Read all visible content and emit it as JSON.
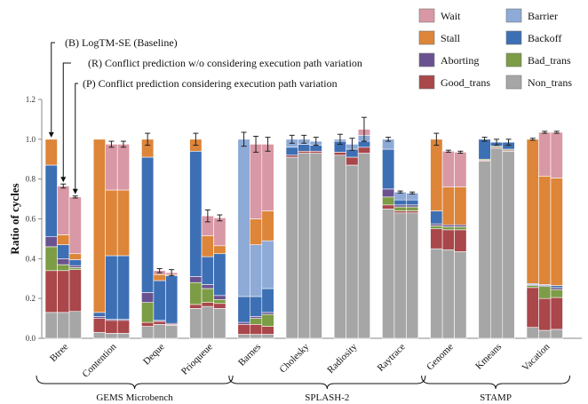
{
  "chart_data": {
    "type": "bar",
    "stacked": true,
    "ylabel": "Ratio of cycles",
    "ylim": [
      0,
      1.2
    ],
    "yticks": [
      "0.0",
      "0.2",
      "0.4",
      "0.6",
      "0.8",
      "1.0",
      "1.2"
    ],
    "grid": false,
    "legend_position": "top-right",
    "components": [
      "Non_trans",
      "Good_trans",
      "Bad_trans",
      "Aborting",
      "Backoff",
      "Barrier",
      "Stall",
      "Wait"
    ],
    "legend": [
      {
        "key": "Wait",
        "label": "Wait"
      },
      {
        "key": "Barrier",
        "label": "Barrier"
      },
      {
        "key": "Stall",
        "label": "Stall"
      },
      {
        "key": "Backoff",
        "label": "Backoff"
      },
      {
        "key": "Aborting",
        "label": "Aborting"
      },
      {
        "key": "Bad_trans",
        "label": "Bad_trans"
      },
      {
        "key": "Good_trans",
        "label": "Good_trans"
      },
      {
        "key": "Non_trans",
        "label": "Non_trans"
      }
    ],
    "colors": {
      "Non_trans": "#a6a6a6",
      "Good_trans": "#a9474a",
      "Bad_trans": "#7c9c46",
      "Aborting": "#6a5290",
      "Backoff": "#3d6fb4",
      "Barrier": "#8eaad7",
      "Stall": "#dd8539",
      "Wait": "#d998a5"
    },
    "annotations": [
      {
        "variant": "B",
        "text": "(B) LogTM-SE (Baseline)"
      },
      {
        "variant": "R",
        "text": "(R) Conflict prediction w/o considering execution path variation"
      },
      {
        "variant": "P",
        "text": "(P) Conflict prediction considering execution path variation"
      }
    ],
    "groups": [
      {
        "label": "GEMS Microbench",
        "benchmarks": [
          "Btree",
          "Contention",
          "Deque",
          "Prioqueue"
        ]
      },
      {
        "label": "SPLASH-2",
        "benchmarks": [
          "Barnes",
          "Cholesky",
          "Radiosity",
          "Raytrace"
        ]
      },
      {
        "label": "STAMP",
        "benchmarks": [
          "Genome",
          "Kmeans",
          "Vacation"
        ]
      }
    ],
    "benchmarks": [
      {
        "name": "Btree",
        "bars": [
          {
            "variant": "B",
            "total": 1.0,
            "err": 0.0,
            "values": {
              "Non_trans": 0.13,
              "Good_trans": 0.21,
              "Bad_trans": 0.12,
              "Aborting": 0.05,
              "Backoff": 0.36,
              "Barrier": 0.0,
              "Stall": 0.13,
              "Wait": 0.0
            }
          },
          {
            "variant": "R",
            "total": 0.765,
            "err": 0.01,
            "values": {
              "Non_trans": 0.13,
              "Good_trans": 0.21,
              "Bad_trans": 0.03,
              "Aborting": 0.03,
              "Backoff": 0.07,
              "Barrier": 0.0,
              "Stall": 0.05,
              "Wait": 0.245
            }
          },
          {
            "variant": "P",
            "total": 0.71,
            "err": 0.005,
            "values": {
              "Non_trans": 0.135,
              "Good_trans": 0.21,
              "Bad_trans": 0.01,
              "Aborting": 0.01,
              "Backoff": 0.03,
              "Barrier": 0.0,
              "Stall": 0.03,
              "Wait": 0.285
            }
          }
        ]
      },
      {
        "name": "Contention",
        "bars": [
          {
            "variant": "B",
            "total": 1.0,
            "err": 0.0,
            "values": {
              "Non_trans": 0.03,
              "Good_trans": 0.07,
              "Bad_trans": 0.0,
              "Aborting": 0.01,
              "Backoff": 0.02,
              "Barrier": 0.0,
              "Stall": 0.87,
              "Wait": 0.0
            }
          },
          {
            "variant": "R",
            "total": 0.975,
            "err": 0.015,
            "values": {
              "Non_trans": 0.025,
              "Good_trans": 0.065,
              "Bad_trans": 0.0,
              "Aborting": 0.005,
              "Backoff": 0.32,
              "Barrier": 0.0,
              "Stall": 0.33,
              "Wait": 0.23
            }
          },
          {
            "variant": "P",
            "total": 0.975,
            "err": 0.015,
            "values": {
              "Non_trans": 0.025,
              "Good_trans": 0.065,
              "Bad_trans": 0.0,
              "Aborting": 0.005,
              "Backoff": 0.32,
              "Barrier": 0.0,
              "Stall": 0.33,
              "Wait": 0.23
            }
          }
        ]
      },
      {
        "name": "Deque",
        "bars": [
          {
            "variant": "B",
            "total": 1.0,
            "err": 0.03,
            "values": {
              "Non_trans": 0.06,
              "Good_trans": 0.02,
              "Bad_trans": 0.1,
              "Aborting": 0.05,
              "Backoff": 0.68,
              "Barrier": 0.0,
              "Stall": 0.09,
              "Wait": 0.0
            }
          },
          {
            "variant": "R",
            "total": 0.34,
            "err": 0.01,
            "values": {
              "Non_trans": 0.07,
              "Good_trans": 0.015,
              "Bad_trans": 0.0,
              "Aborting": 0.005,
              "Backoff": 0.2,
              "Barrier": 0.0,
              "Stall": 0.03,
              "Wait": 0.02
            }
          },
          {
            "variant": "P",
            "total": 0.33,
            "err": 0.015,
            "values": {
              "Non_trans": 0.065,
              "Good_trans": 0.005,
              "Bad_trans": 0.0,
              "Aborting": 0.005,
              "Backoff": 0.24,
              "Barrier": 0.0,
              "Stall": 0.005,
              "Wait": 0.01
            }
          }
        ]
      },
      {
        "name": "Prioqueue",
        "bars": [
          {
            "variant": "B",
            "total": 1.0,
            "err": 0.03,
            "values": {
              "Non_trans": 0.15,
              "Good_trans": 0.02,
              "Bad_trans": 0.11,
              "Aborting": 0.03,
              "Backoff": 0.63,
              "Barrier": 0.0,
              "Stall": 0.06,
              "Wait": 0.0
            }
          },
          {
            "variant": "R",
            "total": 0.615,
            "err": 0.03,
            "values": {
              "Non_trans": 0.16,
              "Good_trans": 0.02,
              "Bad_trans": 0.07,
              "Aborting": 0.02,
              "Backoff": 0.14,
              "Barrier": 0.0,
              "Stall": 0.105,
              "Wait": 0.1
            }
          },
          {
            "variant": "P",
            "total": 0.605,
            "err": 0.015,
            "values": {
              "Non_trans": 0.15,
              "Good_trans": 0.025,
              "Bad_trans": 0.02,
              "Aborting": 0.02,
              "Backoff": 0.21,
              "Barrier": 0.0,
              "Stall": 0.04,
              "Wait": 0.14
            }
          }
        ]
      },
      {
        "name": "Barnes",
        "bars": [
          {
            "variant": "B",
            "total": 1.0,
            "err": 0.035,
            "values": {
              "Non_trans": 0.02,
              "Good_trans": 0.05,
              "Bad_trans": 0.0,
              "Aborting": 0.01,
              "Backoff": 0.13,
              "Barrier": 0.79,
              "Stall": 0.0,
              "Wait": 0.0
            }
          },
          {
            "variant": "R",
            "total": 0.975,
            "err": 0.04,
            "values": {
              "Non_trans": 0.02,
              "Good_trans": 0.05,
              "Bad_trans": 0.03,
              "Aborting": 0.01,
              "Backoff": 0.1,
              "Barrier": 0.26,
              "Stall": 0.13,
              "Wait": 0.375
            }
          },
          {
            "variant": "P",
            "total": 0.975,
            "err": 0.035,
            "values": {
              "Non_trans": 0.02,
              "Good_trans": 0.04,
              "Bad_trans": 0.06,
              "Aborting": 0.01,
              "Backoff": 0.12,
              "Barrier": 0.24,
              "Stall": 0.15,
              "Wait": 0.335
            }
          }
        ]
      },
      {
        "name": "Cholesky",
        "bars": [
          {
            "variant": "B",
            "total": 1.0,
            "err": 0.02,
            "values": {
              "Non_trans": 0.91,
              "Good_trans": 0.01,
              "Bad_trans": 0.0,
              "Aborting": 0.0,
              "Backoff": 0.04,
              "Barrier": 0.04,
              "Stall": 0.0,
              "Wait": 0.0
            }
          },
          {
            "variant": "R",
            "total": 1.0,
            "err": 0.02,
            "values": {
              "Non_trans": 0.93,
              "Good_trans": 0.01,
              "Bad_trans": 0.0,
              "Aborting": 0.0,
              "Backoff": 0.035,
              "Barrier": 0.025,
              "Stall": 0.0,
              "Wait": 0.0
            }
          },
          {
            "variant": "P",
            "total": 0.99,
            "err": 0.02,
            "values": {
              "Non_trans": 0.93,
              "Good_trans": 0.01,
              "Bad_trans": 0.0,
              "Aborting": 0.0,
              "Backoff": 0.03,
              "Barrier": 0.02,
              "Stall": 0.0,
              "Wait": 0.0
            }
          }
        ]
      },
      {
        "name": "Radiosity",
        "bars": [
          {
            "variant": "B",
            "total": 1.0,
            "err": 0.025,
            "values": {
              "Non_trans": 0.92,
              "Good_trans": 0.015,
              "Bad_trans": 0.0,
              "Aborting": 0.0,
              "Backoff": 0.055,
              "Barrier": 0.01,
              "Stall": 0.0,
              "Wait": 0.0
            }
          },
          {
            "variant": "R",
            "total": 0.975,
            "err": 0.03,
            "values": {
              "Non_trans": 0.87,
              "Good_trans": 0.04,
              "Bad_trans": 0.0,
              "Aborting": 0.0,
              "Backoff": 0.04,
              "Barrier": 0.025,
              "Stall": 0.0,
              "Wait": 0.0
            }
          },
          {
            "variant": "P",
            "total": 1.05,
            "err": 0.06,
            "values": {
              "Non_trans": 0.93,
              "Good_trans": 0.03,
              "Bad_trans": 0.0,
              "Aborting": 0.0,
              "Backoff": 0.03,
              "Barrier": 0.03,
              "Stall": 0.0,
              "Wait": 0.03
            }
          }
        ]
      },
      {
        "name": "Raytrace",
        "bars": [
          {
            "variant": "B",
            "total": 1.0,
            "err": 0.01,
            "values": {
              "Non_trans": 0.65,
              "Good_trans": 0.02,
              "Bad_trans": 0.04,
              "Aborting": 0.04,
              "Backoff": 0.2,
              "Barrier": 0.05,
              "Stall": 0.0,
              "Wait": 0.0
            }
          },
          {
            "variant": "R",
            "total": 0.735,
            "err": 0.005,
            "values": {
              "Non_trans": 0.63,
              "Good_trans": 0.01,
              "Bad_trans": 0.02,
              "Aborting": 0.01,
              "Backoff": 0.025,
              "Barrier": 0.04,
              "Stall": 0.0,
              "Wait": 0.0
            }
          },
          {
            "variant": "P",
            "total": 0.73,
            "err": 0.005,
            "values": {
              "Non_trans": 0.63,
              "Good_trans": 0.01,
              "Bad_trans": 0.02,
              "Aborting": 0.01,
              "Backoff": 0.025,
              "Barrier": 0.035,
              "Stall": 0.0,
              "Wait": 0.0
            }
          }
        ]
      },
      {
        "name": "Genome",
        "bars": [
          {
            "variant": "B",
            "total": 1.0,
            "err": 0.03,
            "values": {
              "Non_trans": 0.45,
              "Good_trans": 0.1,
              "Bad_trans": 0.015,
              "Aborting": 0.01,
              "Backoff": 0.065,
              "Barrier": 0.0,
              "Stall": 0.36,
              "Wait": 0.0
            }
          },
          {
            "variant": "R",
            "total": 0.94,
            "err": 0.005,
            "values": {
              "Non_trans": 0.445,
              "Good_trans": 0.1,
              "Bad_trans": 0.015,
              "Aborting": 0.01,
              "Backoff": 0.0,
              "Barrier": 0.0,
              "Stall": 0.19,
              "Wait": 0.18
            }
          },
          {
            "variant": "P",
            "total": 0.935,
            "err": 0.005,
            "values": {
              "Non_trans": 0.435,
              "Good_trans": 0.11,
              "Bad_trans": 0.015,
              "Aborting": 0.01,
              "Backoff": 0.0,
              "Barrier": 0.0,
              "Stall": 0.19,
              "Wait": 0.175
            }
          }
        ]
      },
      {
        "name": "Kmeans",
        "bars": [
          {
            "variant": "B",
            "total": 1.0,
            "err": 0.01,
            "values": {
              "Non_trans": 0.89,
              "Good_trans": 0.005,
              "Bad_trans": 0.005,
              "Aborting": 0.0,
              "Backoff": 0.1,
              "Barrier": 0.0,
              "Stall": 0.0,
              "Wait": 0.0
            }
          },
          {
            "variant": "R",
            "total": 0.985,
            "err": 0.015,
            "values": {
              "Non_trans": 0.955,
              "Good_trans": 0.005,
              "Bad_trans": 0.005,
              "Aborting": 0.0,
              "Backoff": 0.02,
              "Barrier": 0.0,
              "Stall": 0.0,
              "Wait": 0.0
            }
          },
          {
            "variant": "P",
            "total": 0.985,
            "err": 0.015,
            "values": {
              "Non_trans": 0.94,
              "Good_trans": 0.005,
              "Bad_trans": 0.005,
              "Aborting": 0.0,
              "Backoff": 0.035,
              "Barrier": 0.0,
              "Stall": 0.0,
              "Wait": 0.0
            }
          }
        ]
      },
      {
        "name": "Vacation",
        "bars": [
          {
            "variant": "B",
            "total": 1.0,
            "err": 0.005,
            "values": {
              "Non_trans": 0.055,
              "Good_trans": 0.2,
              "Bad_trans": 0.01,
              "Aborting": 0.005,
              "Backoff": 0.005,
              "Barrier": 0.0,
              "Stall": 0.725,
              "Wait": 0.0
            }
          },
          {
            "variant": "R",
            "total": 1.035,
            "err": 0.005,
            "values": {
              "Non_trans": 0.04,
              "Good_trans": 0.16,
              "Bad_trans": 0.06,
              "Aborting": 0.005,
              "Backoff": 0.005,
              "Barrier": 0.0,
              "Stall": 0.545,
              "Wait": 0.22
            }
          },
          {
            "variant": "P",
            "total": 1.035,
            "err": 0.005,
            "values": {
              "Non_trans": 0.045,
              "Good_trans": 0.16,
              "Bad_trans": 0.04,
              "Aborting": 0.01,
              "Backoff": 0.01,
              "Barrier": 0.0,
              "Stall": 0.54,
              "Wait": 0.23
            }
          }
        ]
      }
    ]
  }
}
